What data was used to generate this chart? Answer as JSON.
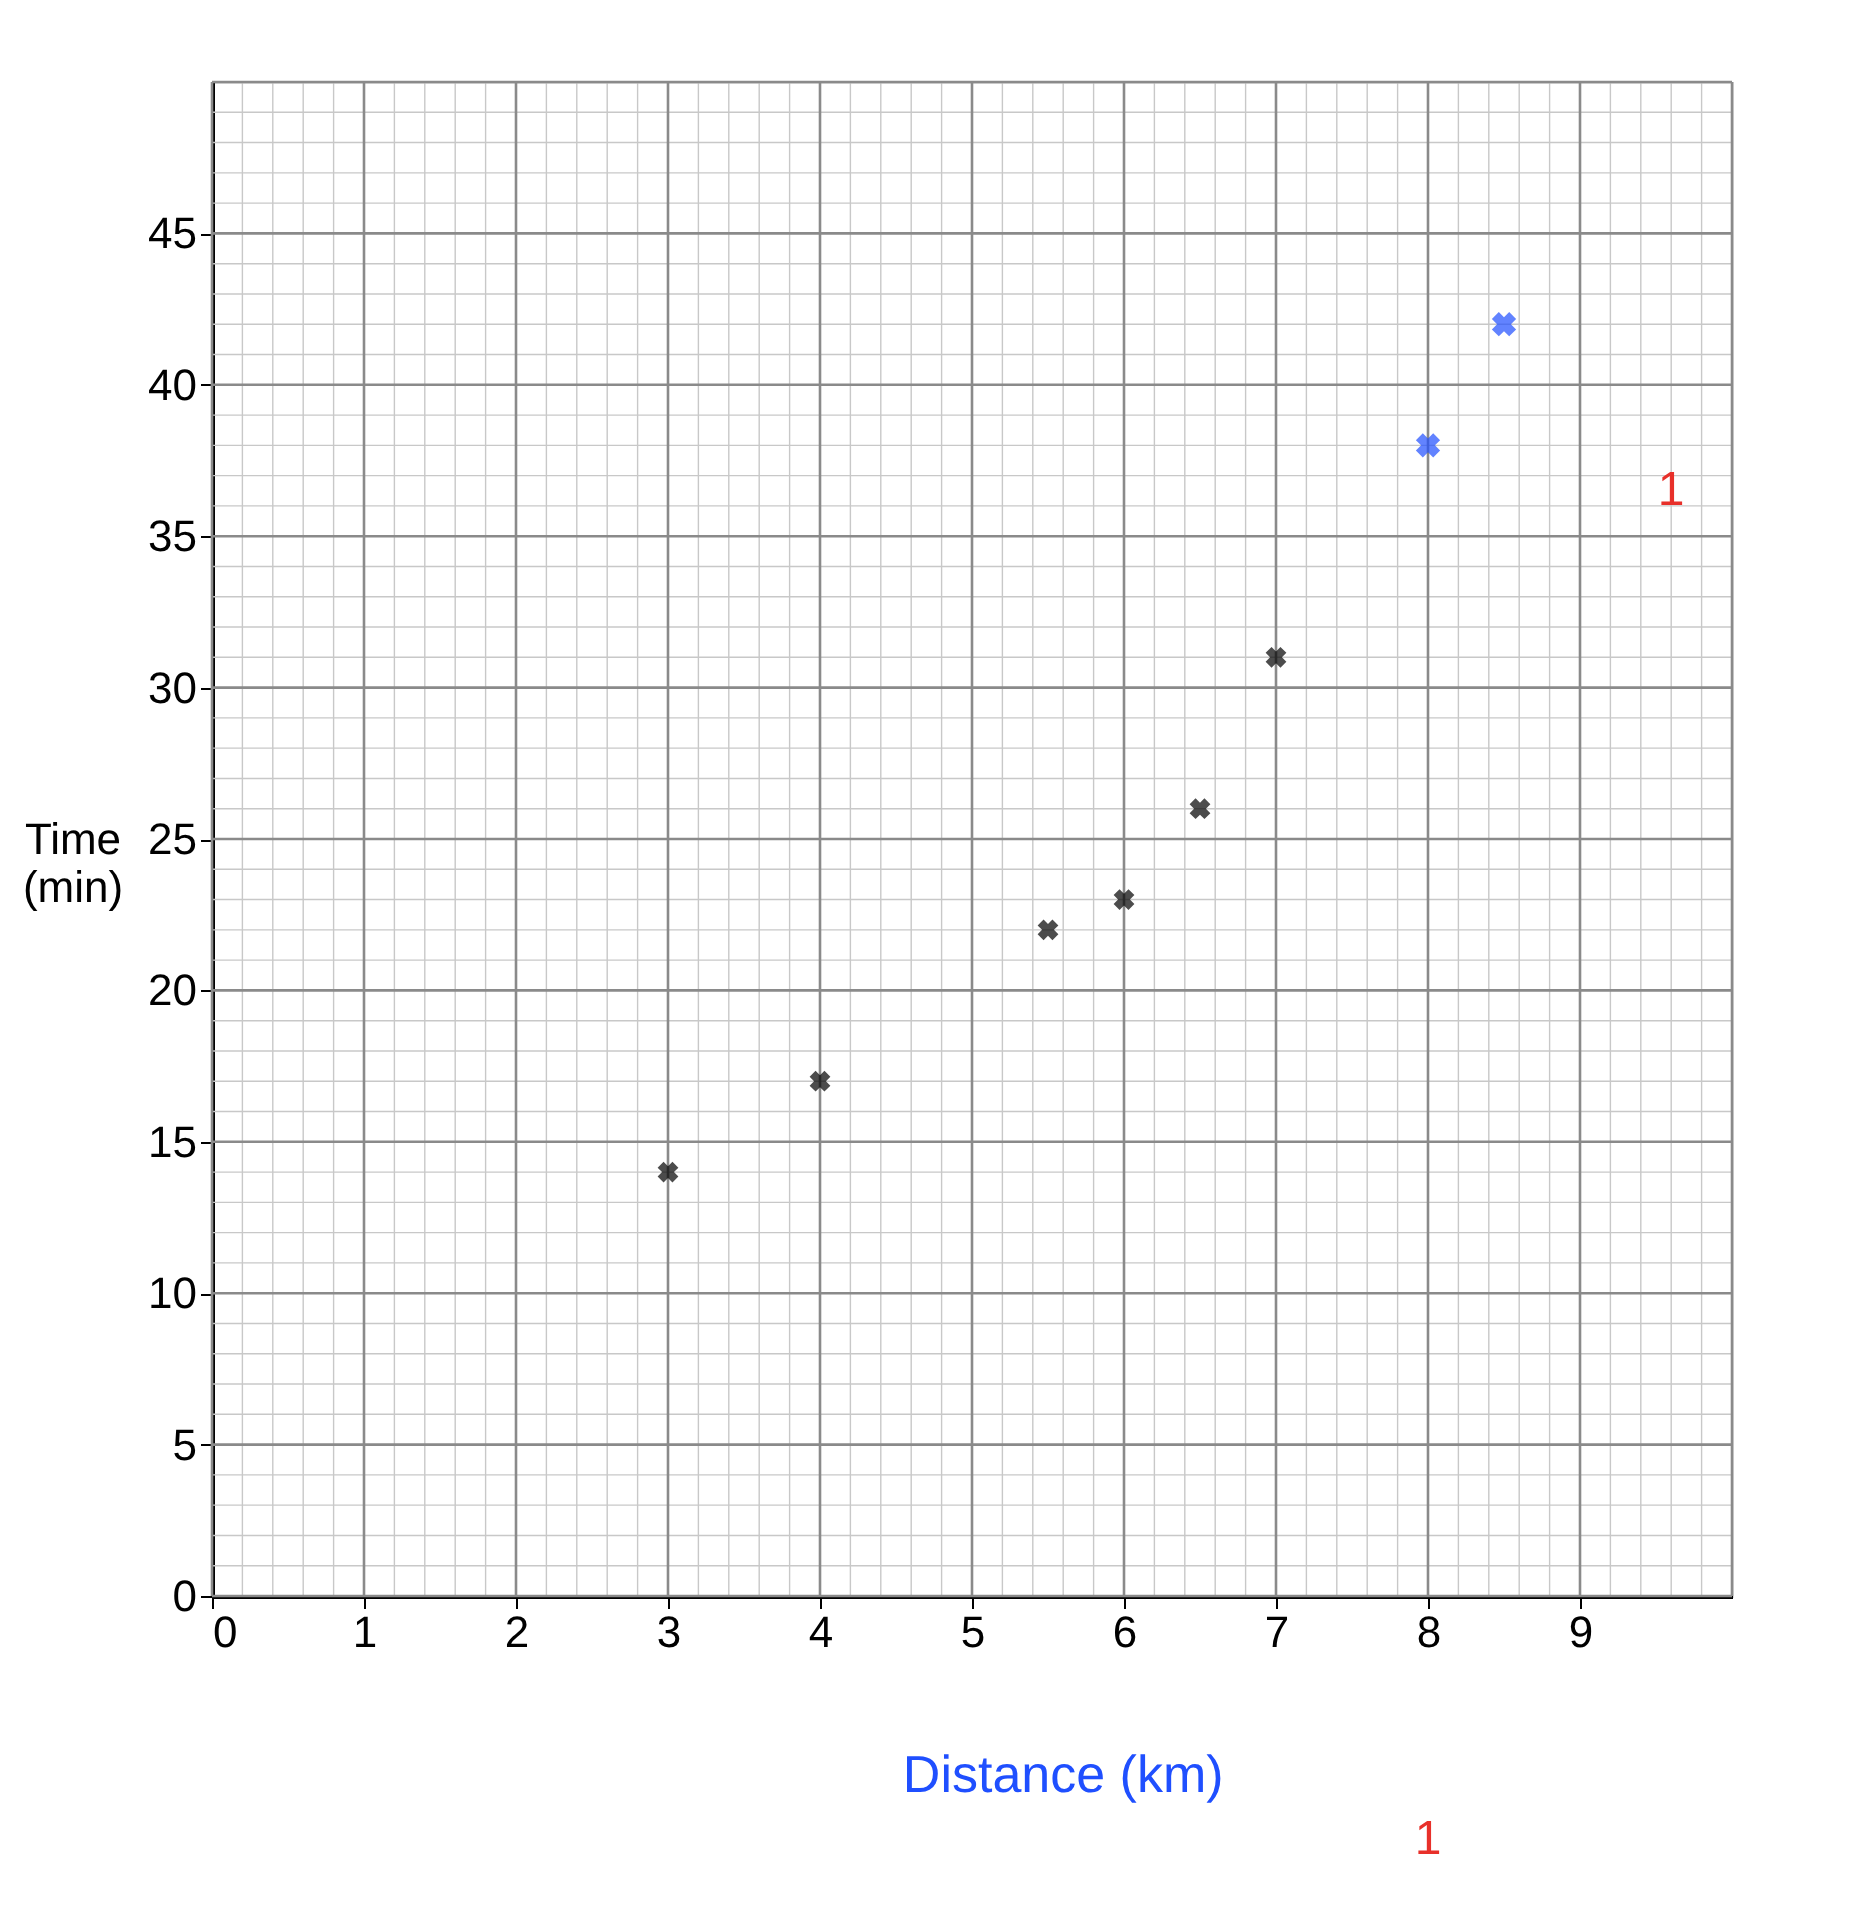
{
  "chart_data": {
    "type": "scatter",
    "xlabel": "Distance (km)",
    "ylabel": "Time\n(min)",
    "xlim": [
      0,
      10
    ],
    "ylim": [
      0,
      50
    ],
    "xticks": [
      0,
      1,
      2,
      3,
      4,
      5,
      6,
      7,
      8,
      9
    ],
    "yticks": [
      0,
      5,
      10,
      15,
      20,
      25,
      30,
      35,
      40,
      45
    ],
    "grid": true,
    "marker": "cross",
    "series": [
      {
        "color": "#000000",
        "x": [
          3,
          4,
          5.5,
          6,
          6.5,
          7
        ],
        "values": [
          14,
          17,
          22,
          23,
          26,
          31
        ]
      },
      {
        "color": "#1f4fff",
        "x": [
          8,
          8.5
        ],
        "values": [
          38,
          42
        ]
      }
    ],
    "annotations": [
      "1",
      "1"
    ]
  }
}
